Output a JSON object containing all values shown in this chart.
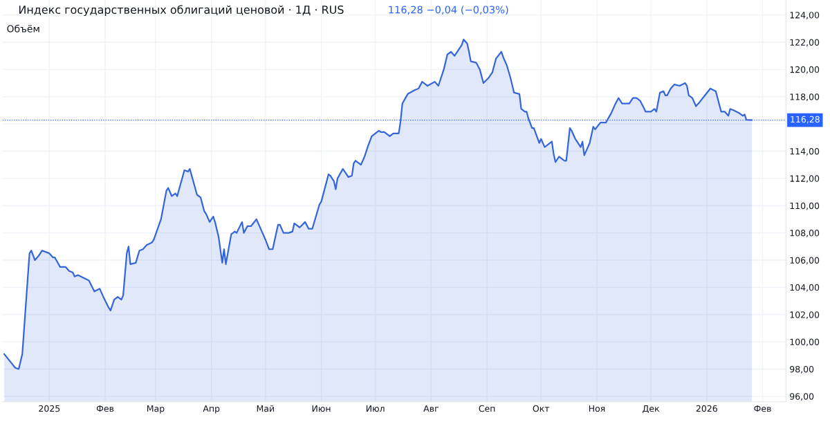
{
  "chart_data": {
    "type": "area",
    "title": "Индекс государственных облигаций ценовой · 1Д · RUS",
    "annotations": [
      "116,28 −0,04 (−0,03%)",
      "Объём"
    ],
    "series": [
      {
        "color": "#3566d8",
        "x": [
          "2024-12-07",
          "2024-12-10",
          "2024-12-13",
          "2024-12-15",
          "2024-12-17",
          "2024-12-21",
          "2024-12-22",
          "2024-12-24",
          "2024-12-26",
          "2024-12-28",
          "2025-01-01",
          "2025-01-03",
          "2025-01-04",
          "2025-01-07",
          "2025-01-10",
          "2025-01-12",
          "2025-01-14",
          "2025-01-15",
          "2025-01-17",
          "2025-01-23",
          "2025-01-26",
          "2025-01-29",
          "2025-01-31",
          "2025-02-03",
          "2025-02-04",
          "2025-02-06",
          "2025-02-08",
          "2025-02-10",
          "2025-02-11",
          "2025-02-13",
          "2025-02-14",
          "2025-02-15",
          "2025-02-18",
          "2025-02-20",
          "2025-02-22",
          "2025-02-24",
          "2025-02-27",
          "2025-02-28",
          "2025-03-04",
          "2025-03-07",
          "2025-03-08",
          "2025-03-10",
          "2025-03-12",
          "2025-03-13",
          "2025-03-17",
          "2025-03-19",
          "2025-03-20",
          "2025-03-24",
          "2025-03-26",
          "2025-03-28",
          "2025-03-29",
          "2025-03-31",
          "2025-04-02",
          "2025-04-03",
          "2025-04-05",
          "2025-04-07",
          "2025-04-08",
          "2025-04-09",
          "2025-04-12",
          "2025-04-14",
          "2025-04-15",
          "2025-04-18",
          "2025-04-19",
          "2025-04-21",
          "2025-04-23",
          "2025-04-26",
          "2025-04-27",
          "2025-04-29",
          "2025-05-01",
          "2025-05-03",
          "2025-05-05",
          "2025-05-08",
          "2025-05-09",
          "2025-05-11",
          "2025-05-14",
          "2025-05-16",
          "2025-05-17",
          "2025-05-20",
          "2025-05-23",
          "2025-05-25",
          "2025-05-27",
          "2025-05-31",
          "2025-06-01",
          "2025-06-05",
          "2025-06-06",
          "2025-06-08",
          "2025-06-09",
          "2025-06-10",
          "2025-06-13",
          "2025-06-16",
          "2025-06-18",
          "2025-06-19",
          "2025-06-20",
          "2025-06-23",
          "2025-06-25",
          "2025-06-27",
          "2025-06-29",
          "2025-07-01",
          "2025-07-03",
          "2025-07-04",
          "2025-07-06",
          "2025-07-09",
          "2025-07-11",
          "2025-07-14",
          "2025-07-15",
          "2025-07-16",
          "2025-07-19",
          "2025-07-23",
          "2025-07-25",
          "2025-07-27",
          "2025-07-30",
          "2025-08-03",
          "2025-08-05",
          "2025-08-08",
          "2025-08-10",
          "2025-08-12",
          "2025-08-14",
          "2025-08-16",
          "2025-08-18",
          "2025-08-19",
          "2025-08-21",
          "2025-08-22",
          "2025-08-23",
          "2025-08-26",
          "2025-08-28",
          "2025-08-30",
          "2025-09-02",
          "2025-09-04",
          "2025-09-06",
          "2025-09-09",
          "2025-09-10",
          "2025-09-12",
          "2025-09-14",
          "2025-09-16",
          "2025-09-19",
          "2025-09-20",
          "2025-09-22",
          "2025-09-23",
          "2025-09-24",
          "2025-09-26",
          "2025-09-27",
          "2025-09-30",
          "2025-10-01",
          "2025-10-03",
          "2025-10-04",
          "2025-10-07",
          "2025-10-08",
          "2025-10-09",
          "2025-10-11",
          "2025-10-12",
          "2025-10-14",
          "2025-10-15",
          "2025-10-17",
          "2025-10-18",
          "2025-10-20",
          "2025-10-21",
          "2025-10-23",
          "2025-10-24",
          "2025-10-25",
          "2025-10-28",
          "2025-10-30",
          "2025-10-31",
          "2025-11-03",
          "2025-11-06",
          "2025-11-09",
          "2025-11-11",
          "2025-11-13",
          "2025-11-15",
          "2025-11-19",
          "2025-11-21",
          "2025-11-23",
          "2025-11-25",
          "2025-11-27",
          "2025-11-28",
          "2025-12-01",
          "2025-12-03",
          "2025-12-04",
          "2025-12-06",
          "2025-12-08",
          "2025-12-09",
          "2025-12-10",
          "2025-12-12",
          "2025-12-14",
          "2025-12-17",
          "2025-12-20",
          "2025-12-21",
          "2025-12-22",
          "2025-12-24",
          "2025-12-26",
          "2025-12-28",
          "2025-12-31",
          "2026-01-03",
          "2026-01-06",
          "2026-01-09",
          "2026-01-11",
          "2026-01-13",
          "2026-01-14",
          "2026-01-16",
          "2026-01-19",
          "2026-01-21",
          "2026-01-22",
          "2026-01-23",
          "2026-01-26"
        ],
        "values": [
          99.1,
          98.6,
          98.1,
          98.0,
          99.1,
          106.5,
          106.7,
          106.0,
          106.3,
          106.7,
          106.5,
          106.2,
          106.2,
          105.5,
          105.5,
          105.2,
          105.1,
          104.8,
          104.9,
          104.5,
          103.7,
          103.9,
          103.3,
          102.5,
          102.3,
          103.1,
          103.3,
          103.1,
          103.4,
          106.5,
          107.0,
          105.7,
          105.8,
          106.7,
          106.8,
          107.1,
          107.3,
          107.5,
          109.0,
          111.1,
          111.3,
          110.7,
          110.9,
          110.7,
          112.6,
          112.5,
          112.7,
          110.8,
          110.6,
          109.6,
          109.4,
          108.8,
          109.2,
          108.8,
          107.7,
          105.8,
          106.8,
          105.7,
          107.9,
          108.1,
          108.0,
          108.8,
          108.0,
          108.5,
          108.5,
          109.0,
          108.7,
          108.1,
          107.5,
          106.8,
          106.8,
          108.6,
          108.6,
          108.0,
          108.0,
          108.1,
          108.7,
          108.4,
          108.8,
          108.3,
          108.3,
          110.1,
          110.3,
          112.3,
          112.2,
          111.8,
          111.2,
          112.0,
          112.7,
          112.1,
          112.2,
          113.1,
          113.3,
          113.0,
          113.6,
          114.4,
          115.1,
          115.3,
          115.5,
          115.4,
          115.4,
          115.1,
          115.3,
          115.3,
          116.2,
          117.5,
          118.2,
          118.5,
          118.6,
          119.1,
          118.8,
          119.1,
          118.8,
          120.0,
          121.1,
          121.3,
          121.0,
          121.4,
          121.8,
          122.2,
          121.9,
          121.3,
          120.6,
          120.5,
          120.0,
          119.0,
          119.4,
          119.8,
          120.8,
          121.3,
          120.9,
          120.3,
          119.4,
          118.3,
          118.2,
          117.1,
          116.9,
          116.9,
          116.4,
          115.7,
          115.7,
          114.6,
          114.9,
          114.3,
          114.4,
          114.7,
          113.8,
          113.2,
          113.6,
          113.5,
          113.3,
          113.3,
          115.7,
          115.5,
          114.9,
          114.7,
          114.3,
          114.7,
          113.7,
          114.6,
          115.8,
          115.6,
          116.1,
          116.1,
          116.8,
          117.4,
          117.9,
          117.5,
          117.5,
          117.9,
          117.9,
          117.7,
          117.2,
          116.9,
          116.9,
          117.1,
          116.9,
          118.3,
          118.4,
          118.1,
          118.1,
          118.6,
          118.9,
          118.8,
          119.0,
          118.8,
          118.1,
          117.9,
          117.3,
          117.6,
          118.1,
          118.6,
          118.4,
          116.9,
          116.9,
          116.6,
          117.1,
          117.0,
          116.8,
          116.6,
          116.7,
          116.3,
          116.28
        ]
      }
    ],
    "xlim": [
      "2024-12-06",
      "2026-02-14"
    ],
    "xticks": [
      {
        "value": "2025-01-01",
        "label": "2025"
      },
      {
        "value": "2025-02-01",
        "label": "Фев"
      },
      {
        "value": "2025-03-01",
        "label": "Мар"
      },
      {
        "value": "2025-04-01",
        "label": "Апр"
      },
      {
        "value": "2025-05-01",
        "label": "Май"
      },
      {
        "value": "2025-06-01",
        "label": "Июн"
      },
      {
        "value": "2025-07-01",
        "label": "Июл"
      },
      {
        "value": "2025-08-01",
        "label": "Авг"
      },
      {
        "value": "2025-09-01",
        "label": "Сеп"
      },
      {
        "value": "2025-10-01",
        "label": "Окт"
      },
      {
        "value": "2025-11-01",
        "label": "Ноя"
      },
      {
        "value": "2025-12-01",
        "label": "Дек"
      },
      {
        "value": "2026-01-01",
        "label": "2026"
      },
      {
        "value": "2026-02-01",
        "label": "Фев"
      }
    ],
    "ylim": [
      95.6,
      125.1
    ],
    "yticks": [
      {
        "value": 96,
        "label": "96,00"
      },
      {
        "value": 98,
        "label": "98,00"
      },
      {
        "value": 100,
        "label": "100,00"
      },
      {
        "value": 102,
        "label": "102,00"
      },
      {
        "value": 104,
        "label": "104,00"
      },
      {
        "value": 106,
        "label": "106,00"
      },
      {
        "value": 108,
        "label": "108,00"
      },
      {
        "value": 110,
        "label": "110,00"
      },
      {
        "value": 112,
        "label": "112,00"
      },
      {
        "value": 114,
        "label": "114,00"
      },
      {
        "value": 116,
        "label": null
      },
      {
        "value": 118,
        "label": "118,00"
      },
      {
        "value": 120,
        "label": "120,00"
      },
      {
        "value": 122,
        "label": "122,00"
      },
      {
        "value": 124,
        "label": "124,00"
      }
    ],
    "ref_lines": [
      {
        "axis": "y",
        "value": 116.28,
        "label": "116,28",
        "color": "#2962ff",
        "line_style": "dotted"
      }
    ],
    "grid": true,
    "line_style": "solid",
    "marker": "none",
    "legend": false
  }
}
